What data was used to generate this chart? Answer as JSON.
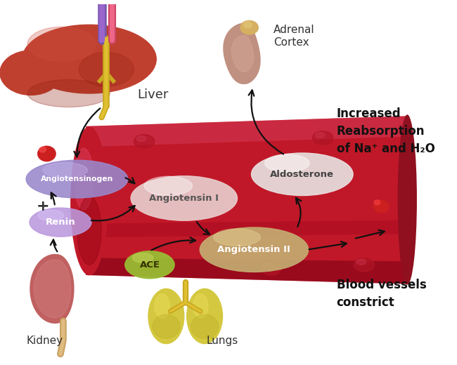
{
  "bg_color": "#ffffff",
  "vessel_color": "#c01828",
  "vessel_dark": "#8b0010",
  "vessel_highlight": "#d84060",
  "angiotensinogen_color": "#9988cc",
  "renin_color": "#bb99dd",
  "angiotensin1_color": "#e8cccc",
  "angiotensin2_color": "#c4aa70",
  "aldosterone_color": "#e8e0e0",
  "ace_color": "#99bb33",
  "arrow_color": "#111111",
  "text_color": "#222222",
  "liver_color": "#c04030",
  "liver_dark": "#902010",
  "kidney_color": "#c06060",
  "kidney_highlight": "#d88888",
  "lung_color": "#d4c840",
  "lung_highlight": "#b8aa20",
  "adrenal_color": "#c09080",
  "adrenal_cap": "#d4b060",
  "labels": {
    "liver": "Liver",
    "kidney": "Kidney",
    "lungs": "Lungs",
    "adrenal": "Adrenal\nCortex",
    "angiotensinogen": "Angiotensinogen",
    "renin": "Renin",
    "angiotensin1": "Angiotensin I",
    "angiotensin2": "Angiotensin II",
    "aldosterone": "Aldosterone",
    "ace": "ACE",
    "increased": "Increased\nReabsorption\nof Na⁺ and H₂O",
    "blood_vessels": "Blood vessels\nconstrict",
    "plus": "+"
  }
}
